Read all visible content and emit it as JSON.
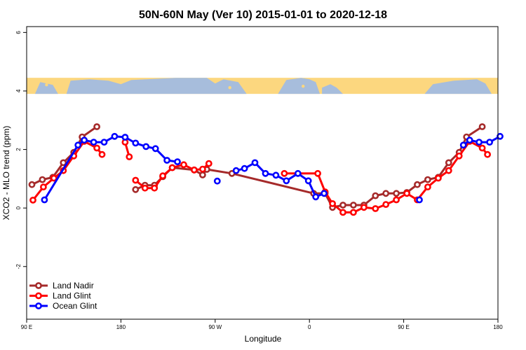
{
  "chart_data": {
    "type": "line",
    "title": "50N-60N May (Ver 10)   2015-01-01 to 2020-12-18",
    "xlabel": "Longitude",
    "ylabel": "XCO2 - MLO trend (ppm)",
    "xlim": [
      90,
      540
    ],
    "ylim": [
      -3.8,
      6.2
    ],
    "x_ticks": [
      {
        "value": 90,
        "label": "90 E"
      },
      {
        "value": 180,
        "label": "180"
      },
      {
        "value": 270,
        "label": "90 W"
      },
      {
        "value": 360,
        "label": "0"
      },
      {
        "value": 450,
        "label": "90 E"
      },
      {
        "value": 540,
        "label": "180"
      }
    ],
    "y_ticks": [
      {
        "value": -2,
        "label": "-2"
      },
      {
        "value": 0,
        "label": "0"
      },
      {
        "value": 2,
        "label": "2"
      },
      {
        "value": 4,
        "label": "4"
      },
      {
        "value": 6,
        "label": "6"
      }
    ],
    "map_strip": {
      "y_from": 3.9,
      "y_to": 4.45,
      "ocean_color": "#a7bddc",
      "land_color": "#fcd77f"
    },
    "legend_position": "bottom-left",
    "series": [
      {
        "name": "Land Nadir",
        "color": "#a52a2a",
        "segments": [
          [
            [
              95,
              0.8
            ],
            [
              105,
              0.97
            ],
            [
              115,
              1.05
            ],
            [
              125,
              1.55
            ],
            [
              135,
              1.9
            ],
            [
              143,
              2.43
            ],
            [
              157,
              2.78
            ]
          ],
          [
            [
              194,
              0.63
            ],
            [
              203,
              0.78
            ],
            [
              212,
              0.78
            ],
            [
              220,
              1.07
            ],
            [
              229,
              1.38
            ],
            [
              250,
              1.3
            ],
            [
              258,
              1.13
            ],
            [
              262,
              1.32
            ],
            [
              286,
              1.18
            ],
            [
              364,
              0.5
            ],
            [
              375,
              0.5
            ],
            [
              382,
              0.02
            ],
            [
              392,
              0.1
            ],
            [
              402,
              0.1
            ],
            [
              412,
              0.1
            ],
            [
              423,
              0.42
            ],
            [
              433,
              0.5
            ],
            [
              443,
              0.5
            ],
            [
              453,
              0.53
            ],
            [
              463,
              0.8
            ],
            [
              473,
              0.97
            ],
            [
              483,
              1.05
            ],
            [
              493,
              1.55
            ],
            [
              503,
              1.9
            ],
            [
              510,
              2.43
            ],
            [
              525,
              2.78
            ]
          ]
        ]
      },
      {
        "name": "Land Glint",
        "color": "#ff0000",
        "segments": [
          [
            [
              96,
              0.27
            ],
            [
              106,
              0.72
            ],
            [
              116,
              1.02
            ],
            [
              125,
              1.28
            ],
            [
              135,
              1.78
            ],
            [
              145,
              2.28
            ],
            [
              157,
              2.05
            ],
            [
              162,
              1.83
            ]
          ],
          [
            [
              184,
              2.25
            ],
            [
              188,
              1.75
            ]
          ],
          [
            [
              194,
              0.95
            ],
            [
              203,
              0.68
            ],
            [
              212,
              0.68
            ],
            [
              220,
              1.1
            ],
            [
              229,
              1.38
            ],
            [
              240,
              1.48
            ],
            [
              250,
              1.3
            ],
            [
              258,
              1.33
            ],
            [
              264,
              1.52
            ]
          ],
          [
            [
              336,
              1.18
            ],
            [
              368,
              1.18
            ],
            [
              375,
              0.55
            ],
            [
              382,
              0.15
            ],
            [
              392,
              -0.15
            ],
            [
              402,
              -0.15
            ],
            [
              412,
              0.02
            ],
            [
              423,
              -0.02
            ],
            [
              433,
              0.12
            ],
            [
              443,
              0.28
            ],
            [
              453,
              0.5
            ],
            [
              463,
              0.28
            ],
            [
              473,
              0.72
            ],
            [
              483,
              1.02
            ],
            [
              493,
              1.28
            ],
            [
              503,
              1.78
            ],
            [
              513,
              2.28
            ],
            [
              525,
              2.05
            ],
            [
              530,
              1.83
            ]
          ]
        ]
      },
      {
        "name": "Ocean Glint",
        "color": "#0000ff",
        "segments": [
          [
            [
              107,
              0.28
            ],
            [
              139,
              2.15
            ],
            [
              145,
              2.32
            ],
            [
              154,
              2.25
            ],
            [
              164,
              2.25
            ],
            [
              174,
              2.45
            ],
            [
              184,
              2.42
            ],
            [
              194,
              2.22
            ],
            [
              204,
              2.1
            ],
            [
              213,
              2.03
            ],
            [
              224,
              1.63
            ],
            [
              234,
              1.58
            ]
          ],
          [
            [
              272,
              0.92
            ]
          ],
          [
            [
              290,
              1.28
            ],
            [
              298,
              1.35
            ],
            [
              308,
              1.55
            ],
            [
              318,
              1.18
            ],
            [
              328,
              1.12
            ],
            [
              338,
              0.93
            ],
            [
              349,
              1.18
            ],
            [
              359,
              0.93
            ],
            [
              366,
              0.38
            ],
            [
              374,
              0.5
            ]
          ],
          [
            [
              465,
              0.28
            ]
          ],
          [
            [
              507,
              2.15
            ],
            [
              513,
              2.32
            ],
            [
              522,
              2.25
            ],
            [
              532,
              2.25
            ],
            [
              542,
              2.45
            ]
          ]
        ]
      }
    ]
  }
}
